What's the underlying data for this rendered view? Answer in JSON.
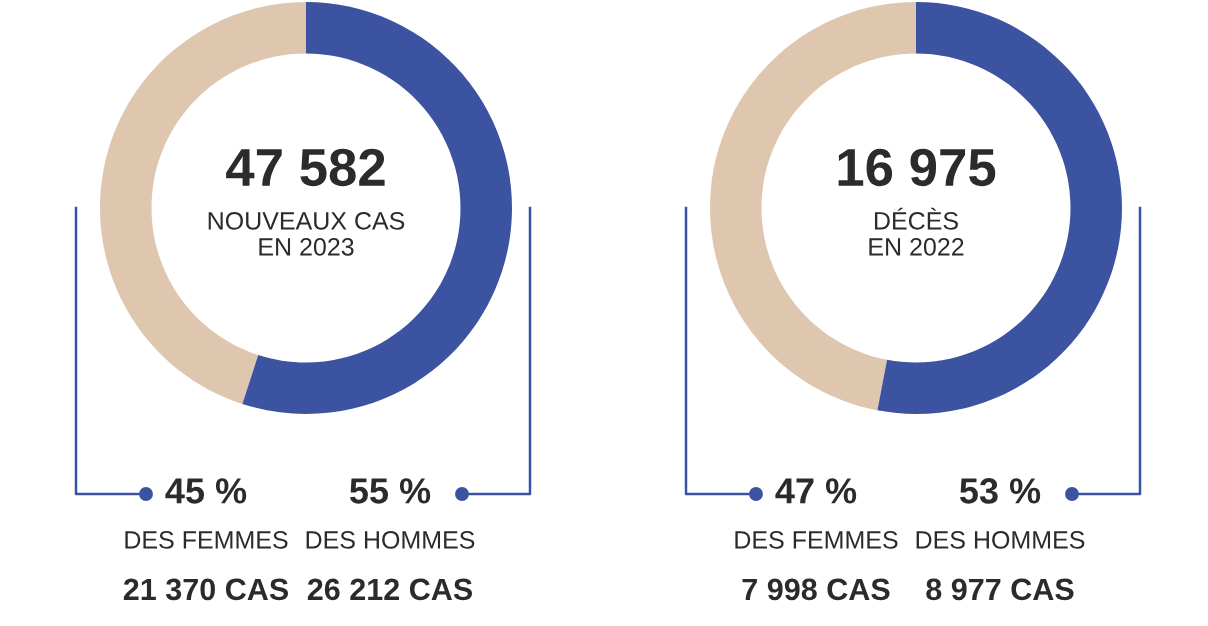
{
  "chart_data": [
    {
      "type": "donut",
      "title": "47 582",
      "subtitle": "NOUVEAUX CAS\nEN 2023",
      "categories": [
        "DES FEMMES",
        "DES HOMMES"
      ],
      "values": [
        45,
        55
      ],
      "colors": [
        "#dfc6ae",
        "#3b53a0"
      ],
      "value_labels": [
        "45 %",
        "55 %"
      ],
      "annotations": [
        "21 370 CAS",
        "26 212 CAS"
      ]
    },
    {
      "type": "donut",
      "title": "16 975",
      "subtitle": "DÉCÈS\nEN 2022",
      "categories": [
        "DES FEMMES",
        "DES HOMMES"
      ],
      "values": [
        47,
        53
      ],
      "colors": [
        "#dfc6ae",
        "#3b53a0"
      ],
      "value_labels": [
        "47 %",
        "53 %"
      ],
      "annotations": [
        "7 998 CAS",
        "8 977 CAS"
      ]
    }
  ]
}
